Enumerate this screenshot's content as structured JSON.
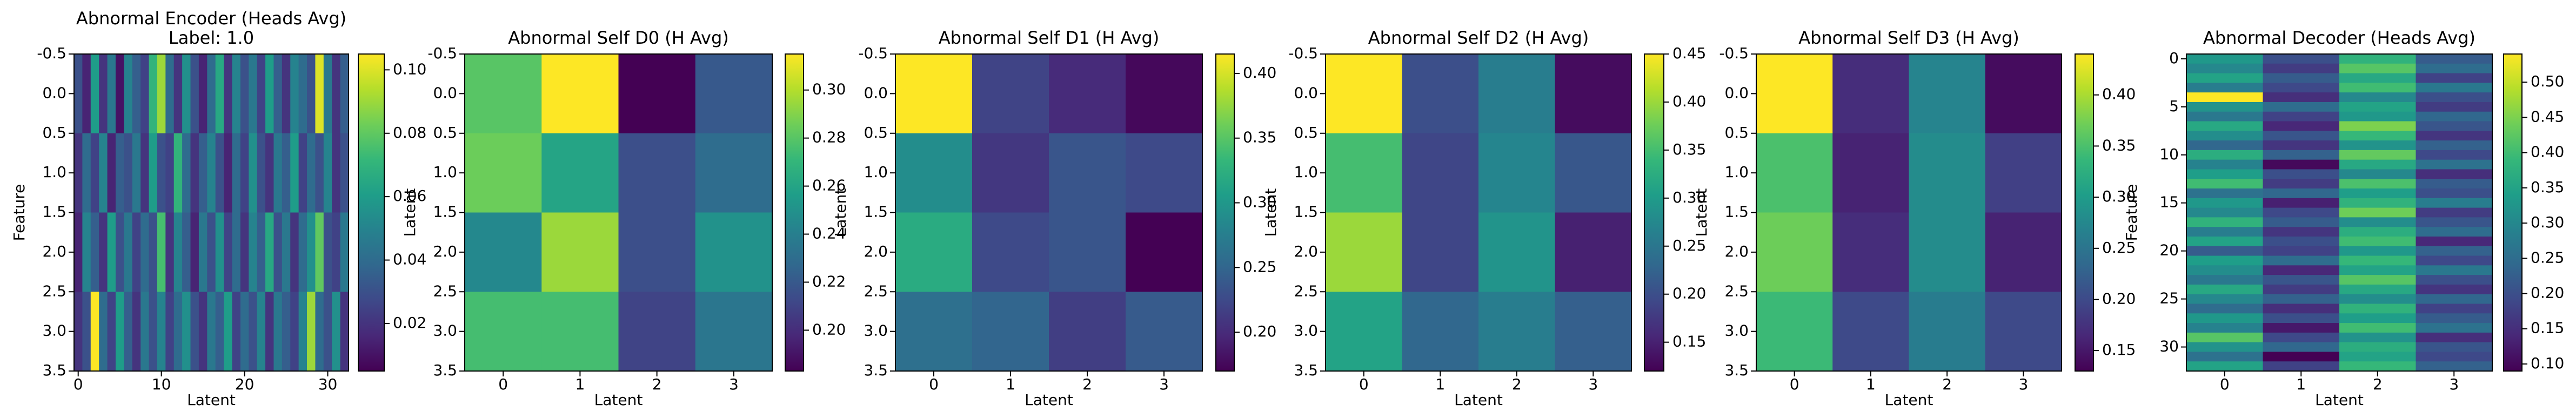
{
  "chart_data": [
    {
      "type": "heatmap",
      "title": "Abnormal Encoder (Heads Avg)",
      "subtitle": "Label: 1.0",
      "xlabel": "Latent",
      "ylabel": "Feature",
      "colormap": "viridis",
      "xlim": [
        -0.5,
        32.5
      ],
      "xticks": [
        0,
        10,
        20,
        30
      ],
      "ylim": [
        3.5,
        -0.5
      ],
      "yticks": [
        -0.5,
        {
          "value": 0,
          "label": "0.0"
        },
        0.5,
        {
          "value": 1,
          "label": "1.0"
        },
        1.5,
        {
          "value": 2,
          "label": "2.0"
        },
        2.5,
        {
          "value": 3,
          "label": "3.0"
        },
        3.5
      ],
      "clim": [
        0.005,
        0.105
      ],
      "cticks": [
        0.02,
        0.04,
        0.06,
        0.08,
        {
          "value": 0.1,
          "label": "0.10"
        }
      ],
      "values": [
        [
          0.03,
          0.015,
          0.06,
          0.02,
          0.045,
          0.01,
          0.05,
          0.035,
          0.025,
          0.07,
          0.09,
          0.04,
          0.02,
          0.055,
          0.03,
          0.015,
          0.04,
          0.065,
          0.02,
          0.05,
          0.03,
          0.045,
          0.025,
          0.06,
          0.035,
          0.02,
          0.05,
          0.04,
          0.03,
          0.1,
          0.045,
          0.02,
          0.035
        ],
        [
          0.02,
          0.04,
          0.025,
          0.05,
          0.015,
          0.035,
          0.03,
          0.045,
          0.02,
          0.06,
          0.03,
          0.025,
          0.07,
          0.04,
          0.02,
          0.035,
          0.05,
          0.03,
          0.015,
          0.04,
          0.025,
          0.055,
          0.03,
          0.02,
          0.045,
          0.035,
          0.06,
          0.025,
          0.04,
          0.03,
          0.05,
          0.02,
          0.03
        ],
        [
          0.015,
          0.05,
          0.035,
          0.02,
          0.06,
          0.03,
          0.045,
          0.025,
          0.04,
          0.03,
          0.075,
          0.02,
          0.05,
          0.035,
          0.015,
          0.045,
          0.03,
          0.055,
          0.025,
          0.04,
          0.02,
          0.05,
          0.035,
          0.065,
          0.03,
          0.045,
          0.02,
          0.04,
          0.055,
          0.08,
          0.03,
          0.025,
          0.045
        ],
        [
          0.02,
          0.03,
          0.105,
          0.04,
          0.025,
          0.06,
          0.035,
          0.02,
          0.045,
          0.03,
          0.05,
          0.025,
          0.04,
          0.055,
          0.03,
          0.02,
          0.045,
          0.035,
          0.06,
          0.025,
          0.04,
          0.03,
          0.05,
          0.02,
          0.045,
          0.035,
          0.025,
          0.05,
          0.09,
          0.04,
          0.03,
          0.055,
          0.02
        ]
      ]
    },
    {
      "type": "heatmap",
      "title": "Abnormal Self D0 (H Avg)",
      "xlabel": "Latent",
      "ylabel": "Latent",
      "colormap": "viridis",
      "xlim": [
        -0.5,
        3.5
      ],
      "xticks": [
        0,
        1,
        2,
        3
      ],
      "ylim": [
        3.5,
        -0.5
      ],
      "yticks": [
        -0.5,
        {
          "value": 0,
          "label": "0.0"
        },
        0.5,
        {
          "value": 1,
          "label": "1.0"
        },
        1.5,
        {
          "value": 2,
          "label": "2.0"
        },
        2.5,
        {
          "value": 3,
          "label": "3.0"
        },
        3.5
      ],
      "clim": [
        0.183,
        0.315
      ],
      "cticks": [
        {
          "value": 0.2,
          "label": "0.20"
        },
        0.22,
        0.24,
        0.26,
        0.28,
        {
          "value": 0.3,
          "label": "0.30"
        }
      ],
      "values": [
        [
          0.28,
          0.315,
          0.183,
          0.22
        ],
        [
          0.285,
          0.26,
          0.215,
          0.23
        ],
        [
          0.245,
          0.295,
          0.215,
          0.25
        ],
        [
          0.275,
          0.275,
          0.21,
          0.235
        ]
      ]
    },
    {
      "type": "heatmap",
      "title": "Abnormal Self D1 (H Avg)",
      "xlabel": "Latent",
      "ylabel": "Latent",
      "colormap": "viridis",
      "xlim": [
        -0.5,
        3.5
      ],
      "xticks": [
        0,
        1,
        2,
        3
      ],
      "ylim": [
        3.5,
        -0.5
      ],
      "yticks": [
        -0.5,
        {
          "value": 0,
          "label": "0.0"
        },
        0.5,
        {
          "value": 1,
          "label": "1.0"
        },
        1.5,
        {
          "value": 2,
          "label": "2.0"
        },
        2.5,
        {
          "value": 3,
          "label": "3.0"
        },
        3.5
      ],
      "clim": [
        0.17,
        0.415
      ],
      "cticks": [
        {
          "value": 0.2,
          "label": "0.20"
        },
        0.25,
        {
          "value": 0.3,
          "label": "0.30"
        },
        0.35,
        {
          "value": 0.4,
          "label": "0.40"
        }
      ],
      "values": [
        [
          0.415,
          0.22,
          0.2,
          0.175
        ],
        [
          0.29,
          0.21,
          0.235,
          0.225
        ],
        [
          0.32,
          0.225,
          0.235,
          0.17
        ],
        [
          0.26,
          0.25,
          0.215,
          0.24
        ]
      ]
    },
    {
      "type": "heatmap",
      "title": "Abnormal Self D2 (H Avg)",
      "xlabel": "Latent",
      "ylabel": "Latent",
      "colormap": "viridis",
      "xlim": [
        -0.5,
        3.5
      ],
      "xticks": [
        0,
        1,
        2,
        3
      ],
      "ylim": [
        3.5,
        -0.5
      ],
      "yticks": [
        -0.5,
        {
          "value": 0,
          "label": "0.0"
        },
        0.5,
        {
          "value": 1,
          "label": "1.0"
        },
        1.5,
        {
          "value": 2,
          "label": "2.0"
        },
        2.5,
        {
          "value": 3,
          "label": "3.0"
        },
        3.5
      ],
      "clim": [
        0.12,
        0.45
      ],
      "cticks": [
        0.15,
        {
          "value": 0.2,
          "label": "0.20"
        },
        0.25,
        {
          "value": 0.3,
          "label": "0.30"
        },
        0.35,
        {
          "value": 0.4,
          "label": "0.40"
        },
        0.45
      ],
      "values": [
        [
          0.45,
          0.2,
          0.26,
          0.13
        ],
        [
          0.35,
          0.19,
          0.27,
          0.21
        ],
        [
          0.4,
          0.19,
          0.29,
          0.15
        ],
        [
          0.31,
          0.23,
          0.26,
          0.22
        ]
      ]
    },
    {
      "type": "heatmap",
      "title": "Abnormal Self D3 (H Avg)",
      "xlabel": "Latent",
      "ylabel": "Latent",
      "colormap": "viridis",
      "xlim": [
        -0.5,
        3.5
      ],
      "xticks": [
        0,
        1,
        2,
        3
      ],
      "ylim": [
        3.5,
        -0.5
      ],
      "yticks": [
        -0.5,
        {
          "value": 0,
          "label": "0.0"
        },
        0.5,
        {
          "value": 1,
          "label": "1.0"
        },
        1.5,
        {
          "value": 2,
          "label": "2.0"
        },
        2.5,
        {
          "value": 3,
          "label": "3.0"
        },
        3.5
      ],
      "clim": [
        0.13,
        0.44
      ],
      "cticks": [
        0.15,
        {
          "value": 0.2,
          "label": "0.20"
        },
        0.25,
        {
          "value": 0.3,
          "label": "0.30"
        },
        0.35,
        {
          "value": 0.4,
          "label": "0.40"
        }
      ],
      "values": [
        [
          0.44,
          0.17,
          0.27,
          0.14
        ],
        [
          0.35,
          0.16,
          0.28,
          0.19
        ],
        [
          0.37,
          0.17,
          0.28,
          0.16
        ],
        [
          0.34,
          0.2,
          0.26,
          0.2
        ]
      ]
    },
    {
      "type": "heatmap",
      "title": "Abnormal Decoder (Heads Avg)",
      "xlabel": "Latent",
      "ylabel": "Feature",
      "colormap": "viridis",
      "xlim": [
        -0.5,
        3.5
      ],
      "xticks": [
        0,
        1,
        2,
        3
      ],
      "ylim": [
        32.5,
        -0.5
      ],
      "yticks": [
        0,
        5,
        10,
        15,
        20,
        25,
        30
      ],
      "clim": [
        0.09,
        0.54
      ],
      "cticks": [
        {
          "value": 0.1,
          "label": "0.10"
        },
        0.15,
        {
          "value": 0.2,
          "label": "0.20"
        },
        0.25,
        {
          "value": 0.3,
          "label": "0.30"
        },
        0.35,
        {
          "value": 0.4,
          "label": "0.40"
        },
        0.45,
        {
          "value": 0.5,
          "label": "0.50"
        }
      ],
      "values": [
        [
          0.33,
          0.2,
          0.38,
          0.22
        ],
        [
          0.3,
          0.17,
          0.42,
          0.25
        ],
        [
          0.35,
          0.22,
          0.36,
          0.18
        ],
        [
          0.28,
          0.19,
          0.4,
          0.27
        ],
        [
          0.54,
          0.15,
          0.3,
          0.2
        ],
        [
          0.32,
          0.25,
          0.35,
          0.17
        ],
        [
          0.27,
          0.18,
          0.33,
          0.24
        ],
        [
          0.36,
          0.14,
          0.45,
          0.21
        ],
        [
          0.31,
          0.21,
          0.39,
          0.16
        ],
        [
          0.24,
          0.16,
          0.32,
          0.23
        ],
        [
          0.37,
          0.23,
          0.43,
          0.19
        ],
        [
          0.29,
          0.1,
          0.36,
          0.26
        ],
        [
          0.34,
          0.2,
          0.3,
          0.15
        ],
        [
          0.4,
          0.17,
          0.41,
          0.22
        ],
        [
          0.26,
          0.24,
          0.34,
          0.2
        ],
        [
          0.33,
          0.13,
          0.38,
          0.28
        ],
        [
          0.3,
          0.19,
          0.44,
          0.17
        ],
        [
          0.38,
          0.22,
          0.31,
          0.21
        ],
        [
          0.28,
          0.16,
          0.37,
          0.25
        ],
        [
          0.35,
          0.2,
          0.4,
          0.14
        ],
        [
          0.22,
          0.18,
          0.33,
          0.23
        ],
        [
          0.34,
          0.25,
          0.39,
          0.19
        ],
        [
          0.31,
          0.14,
          0.35,
          0.27
        ],
        [
          0.27,
          0.21,
          0.42,
          0.2
        ],
        [
          0.36,
          0.17,
          0.36,
          0.16
        ],
        [
          0.3,
          0.23,
          0.31,
          0.24
        ],
        [
          0.25,
          0.15,
          0.38,
          0.18
        ],
        [
          0.33,
          0.2,
          0.34,
          0.22
        ],
        [
          0.29,
          0.12,
          0.4,
          0.26
        ],
        [
          0.42,
          0.19,
          0.32,
          0.15
        ],
        [
          0.32,
          0.24,
          0.37,
          0.21
        ],
        [
          0.26,
          0.09,
          0.35,
          0.19
        ],
        [
          0.35,
          0.18,
          0.39,
          0.23
        ]
      ]
    }
  ]
}
